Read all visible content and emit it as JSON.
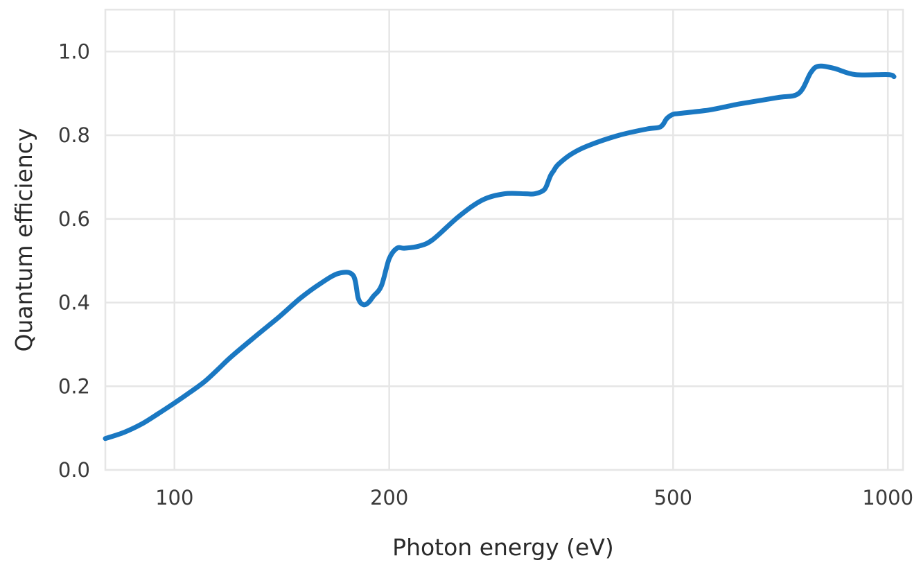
{
  "chart_data": {
    "type": "line",
    "title": "",
    "xlabel": "Photon energy (eV)",
    "ylabel": "Quantum efficiency",
    "xscale": "log",
    "xlim": [
      80,
      1050
    ],
    "ylim": [
      0,
      1.1
    ],
    "x_ticks": [
      100,
      200,
      500,
      1000
    ],
    "x_tick_labels": [
      "100",
      "200",
      "500",
      "1000"
    ],
    "y_ticks": [
      0,
      0.2,
      0.4,
      0.6,
      0.8,
      1.0
    ],
    "y_tick_labels": [
      "0.0",
      "0.2",
      "0.4",
      "0.6",
      "0.8",
      "1.0"
    ],
    "grid": true,
    "line_color": "#1a78c2",
    "grid_color": "#e6e6e6",
    "series": [
      {
        "x": [
          80,
          85,
          90,
          95,
          100,
          105,
          110,
          115,
          120,
          130,
          140,
          150,
          160,
          170,
          178,
          181,
          184,
          187,
          190,
          195,
          200,
          205,
          210,
          220,
          230,
          250,
          270,
          290,
          310,
          320,
          330,
          335,
          337,
          340,
          345,
          360,
          380,
          420,
          460,
          480,
          490,
          500,
          510,
          560,
          600,
          620,
          700,
          750,
          780,
          800,
          840,
          900,
          1000,
          1020
        ],
        "y": [
          0.075,
          0.09,
          0.11,
          0.135,
          0.16,
          0.185,
          0.21,
          0.24,
          0.27,
          0.32,
          0.365,
          0.41,
          0.445,
          0.47,
          0.465,
          0.41,
          0.395,
          0.4,
          0.415,
          0.44,
          0.505,
          0.53,
          0.53,
          0.535,
          0.55,
          0.605,
          0.645,
          0.66,
          0.66,
          0.66,
          0.67,
          0.695,
          0.705,
          0.715,
          0.73,
          0.755,
          0.775,
          0.8,
          0.815,
          0.82,
          0.84,
          0.85,
          0.852,
          0.86,
          0.87,
          0.875,
          0.89,
          0.9,
          0.95,
          0.965,
          0.96,
          0.945,
          0.945,
          0.94
        ]
      }
    ]
  }
}
